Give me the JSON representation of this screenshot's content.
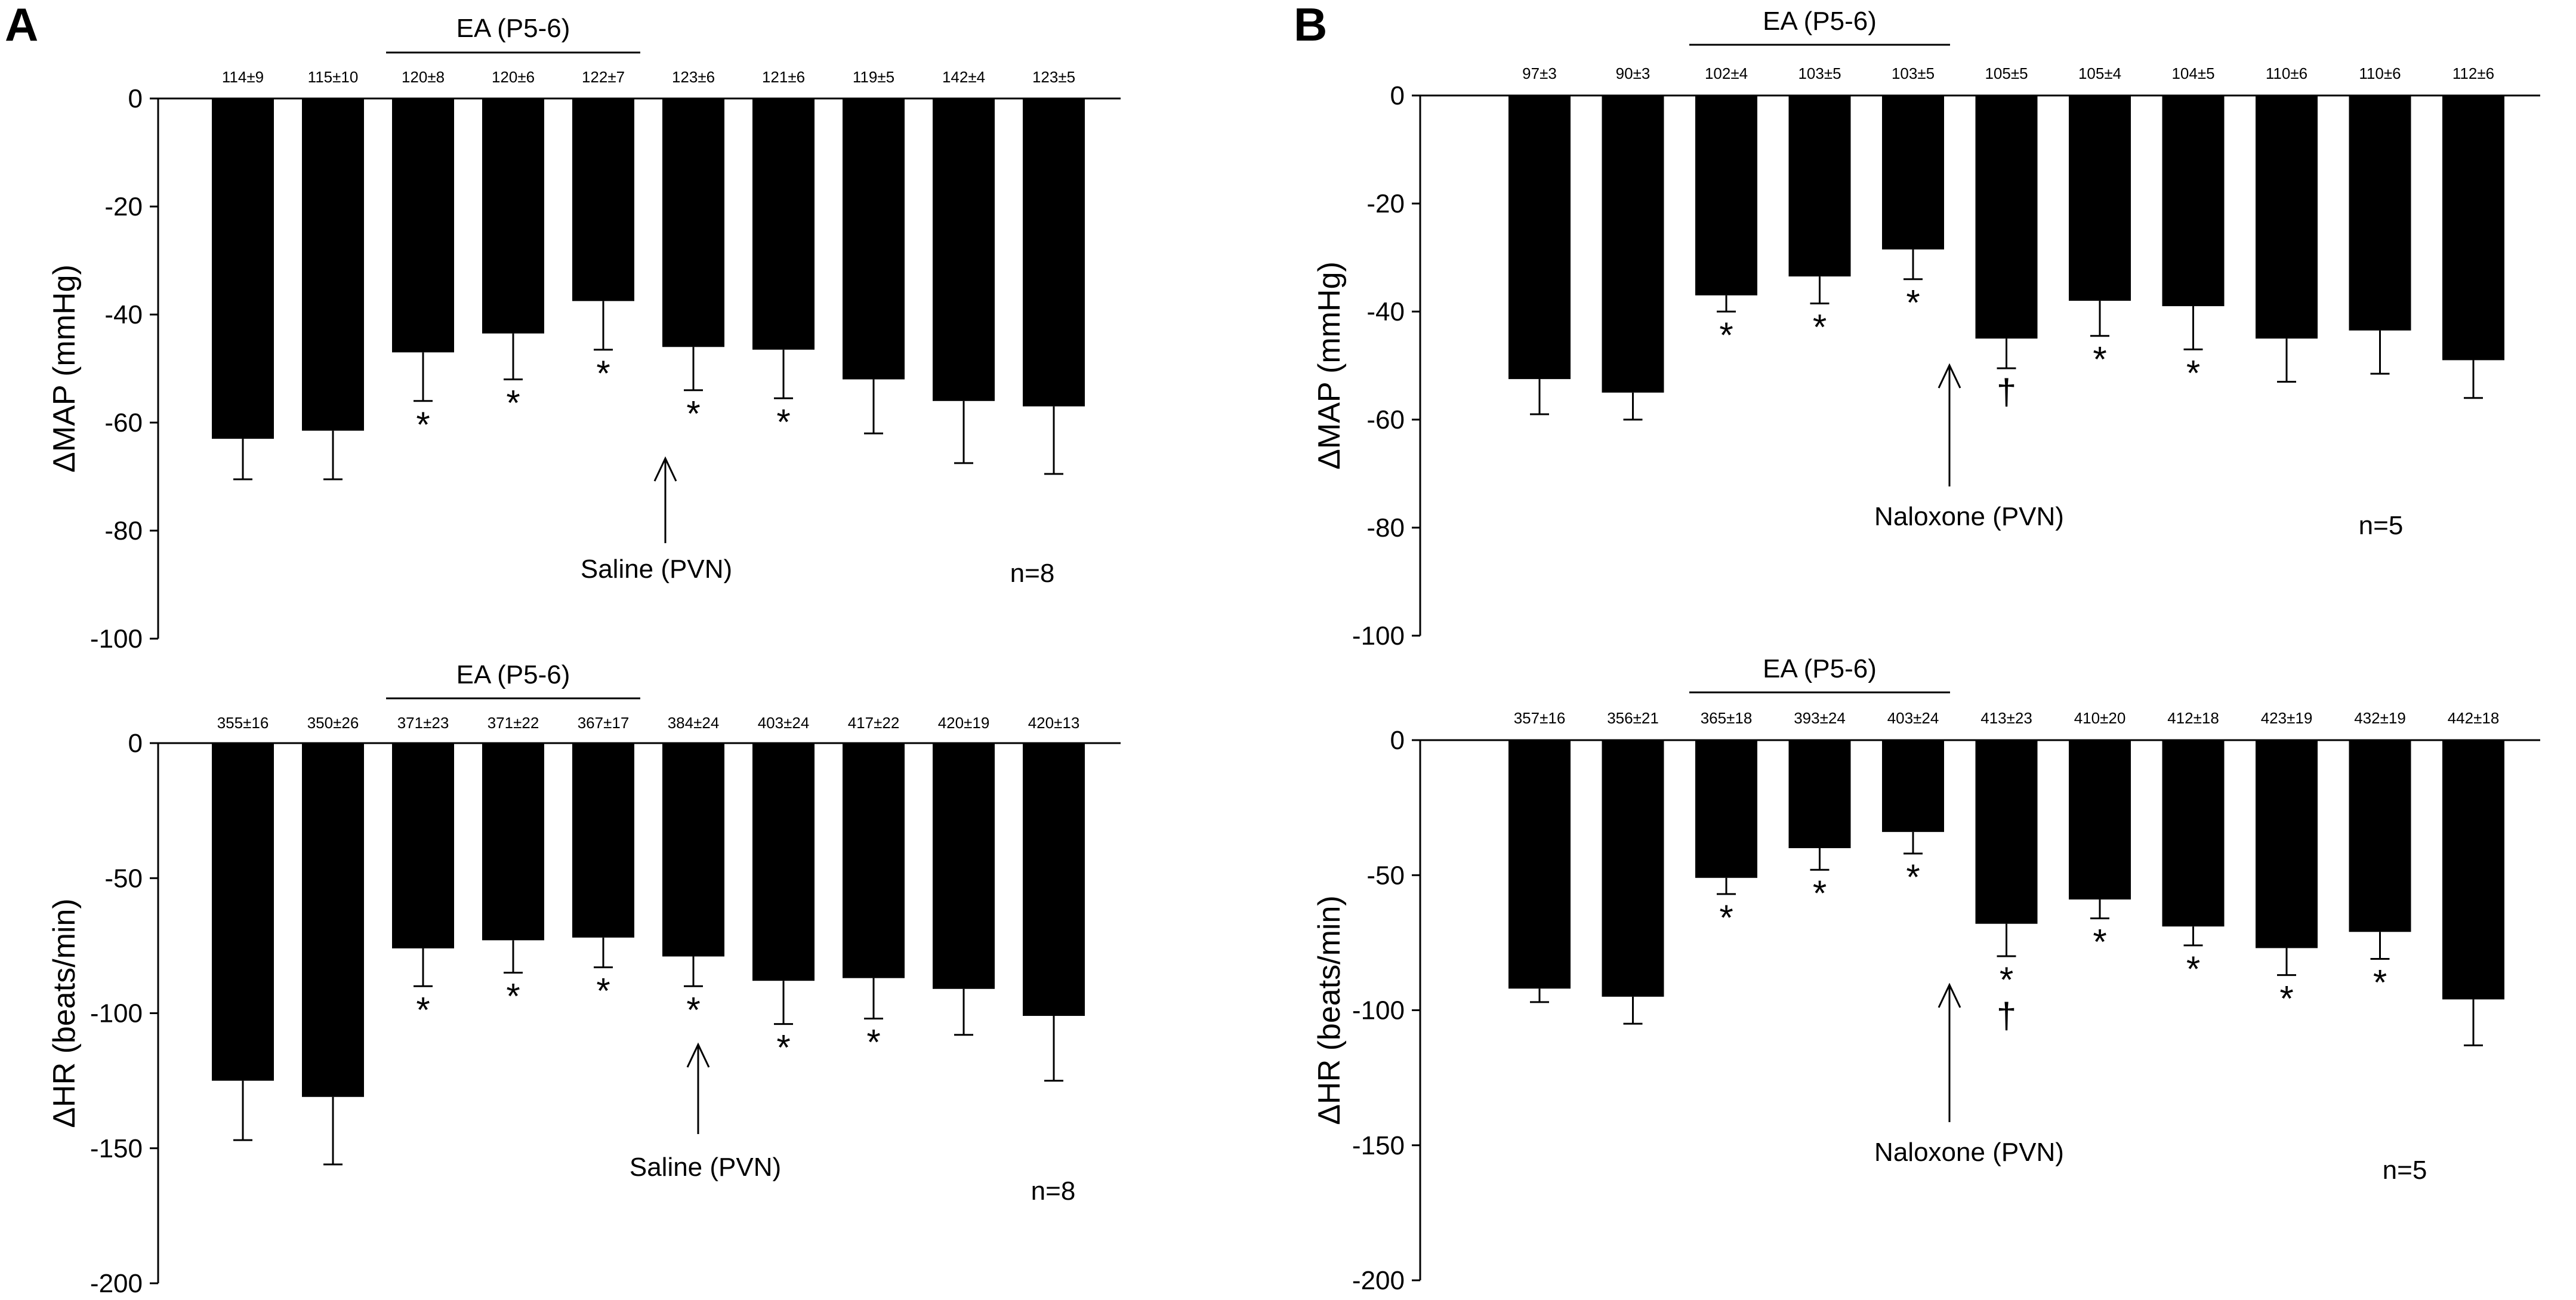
{
  "figure": {
    "panel_letters": [
      "A",
      "B"
    ]
  },
  "chart_data": [
    {
      "id": "A-top",
      "panel": "A",
      "type": "bar",
      "ylabel": "ΔMAP (mmHg)",
      "ylim": [
        -100,
        0
      ],
      "yticks": [
        0,
        -20,
        -40,
        -60,
        -80,
        -100
      ],
      "bracket_label": "EA (P5-6)",
      "bracket_bars": [
        2,
        4
      ],
      "baseline_labels": [
        "114±9",
        "115±10",
        "120±8",
        "120±6",
        "122±7",
        "123±6",
        "121±6",
        "119±5",
        "142±4",
        "123±5"
      ],
      "values": [
        -63,
        -61.5,
        -47,
        -43.5,
        -37.5,
        -46,
        -46.5,
        -52,
        -56,
        -57
      ],
      "errors": [
        7.5,
        9,
        9,
        8.5,
        9,
        8,
        9,
        10,
        11.5,
        12.5
      ],
      "markers": [
        "",
        "",
        "*",
        "*",
        "*",
        "*",
        "*",
        "",
        "",
        ""
      ],
      "arrow_label": "Saline (PVN)",
      "n_label": "n=8"
    },
    {
      "id": "A-bottom",
      "panel": "A",
      "type": "bar",
      "ylabel": "ΔHR (beats/min)",
      "ylim": [
        -200,
        0
      ],
      "yticks": [
        0,
        -50,
        -100,
        -150,
        -200
      ],
      "bracket_label": "EA (P5-6)",
      "bracket_bars": [
        2,
        4
      ],
      "baseline_labels": [
        "355±16",
        "350±26",
        "371±23",
        "371±22",
        "367±17",
        "384±24",
        "403±24",
        "417±22",
        "420±19",
        "420±13"
      ],
      "values": [
        -125,
        -131,
        -76,
        -73,
        -72,
        -79,
        -88,
        -87,
        -91,
        -101
      ],
      "errors": [
        22,
        25,
        14,
        12,
        11,
        11,
        16,
        15,
        17,
        24
      ],
      "markers": [
        "",
        "",
        "*",
        "*",
        "*",
        "*",
        "*",
        "*",
        "",
        ""
      ],
      "arrow_label": "Saline (PVN)",
      "n_label": "n=8"
    },
    {
      "id": "B-top",
      "panel": "B",
      "type": "bar",
      "ylabel": "ΔMAP (mmHg)",
      "ylim": [
        -100,
        0
      ],
      "yticks": [
        0,
        -20,
        -40,
        -60,
        -80,
        -100
      ],
      "bracket_label": "EA (P5-6)",
      "bracket_bars": [
        2,
        4
      ],
      "baseline_labels": [
        "97±3",
        "90±3",
        "102±4",
        "103±5",
        "103±5",
        "105±5",
        "105±4",
        "104±5",
        "110±6",
        "110±6",
        "112±6"
      ],
      "values": [
        -52.5,
        -55,
        -37,
        -33.5,
        -28.5,
        -45,
        -38,
        -39,
        -45,
        -43.5,
        -49
      ],
      "errors": [
        6.5,
        5,
        3,
        5,
        5.5,
        5.5,
        6.5,
        8,
        8,
        8,
        7
      ],
      "markers": [
        "",
        "",
        "*",
        "*",
        "*",
        "†",
        "*",
        "*",
        "",
        "",
        ""
      ],
      "arrow_label": "Naloxone (PVN)",
      "n_label": "n=5"
    },
    {
      "id": "B-bottom",
      "panel": "B",
      "type": "bar",
      "ylabel": "ΔHR (beats/min)",
      "ylim": [
        -200,
        0
      ],
      "yticks": [
        0,
        -50,
        -100,
        -150,
        -200
      ],
      "bracket_label": "EA (P5-6)",
      "bracket_bars": [
        2,
        4
      ],
      "baseline_labels": [
        "357±16",
        "356±21",
        "365±18",
        "393±24",
        "403±24",
        "413±23",
        "410±20",
        "412±18",
        "423±19",
        "432±19",
        "442±18"
      ],
      "values": [
        -92,
        -95,
        -51,
        -40,
        -34,
        -68,
        -59,
        -69,
        -77,
        -71,
        -96
      ],
      "errors": [
        5,
        10,
        6,
        8,
        8,
        12,
        7,
        7,
        10,
        10,
        17
      ],
      "markers": [
        "",
        "",
        "*",
        "*",
        "*",
        "*\n†",
        "*",
        "*",
        "*",
        "*",
        ""
      ],
      "arrow_label": "Naloxone (PVN)",
      "n_label": "n=5"
    }
  ]
}
